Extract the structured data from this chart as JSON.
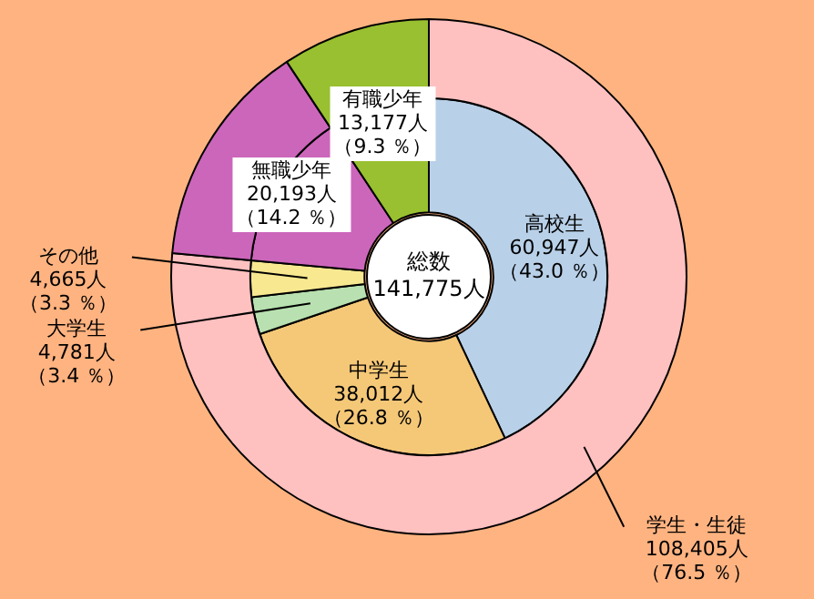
{
  "chart_data": {
    "type": "donut",
    "categories": [
      "高校生",
      "中学生",
      "大学生",
      "その他",
      "無職少年",
      "有職少年"
    ],
    "annotations": [
      "総数\n141,775人"
    ],
    "series": [
      {
        "values": [
          60947,
          38012,
          4781,
          4665,
          20193,
          13177
        ],
        "colors": [
          "#b8d0e8",
          "#f5c878",
          "#b8e0b0",
          "#f8e890",
          "#cc66bb",
          "#99c030"
        ],
        "value_labels": [
          "60,947人（43.0 ％）",
          "38,012人（26.8 ％）",
          "4,781人（3.4 ％）",
          "4,665人（3.3 ％）",
          "20,193人（14.2 ％）",
          "13,177人（9.3 ％）"
        ]
      },
      {
        "name": "学生・生徒",
        "values": [
          108405,
          null,
          null,
          null,
          20193,
          13177
        ],
        "colors": [
          "#ffc0c0",
          null,
          null,
          null,
          "#cc66bb",
          "#99c030"
        ],
        "value_labels": [
          "108,405人（76.5 ％）",
          null,
          null,
          null,
          null,
          null
        ]
      }
    ]
  }
}
